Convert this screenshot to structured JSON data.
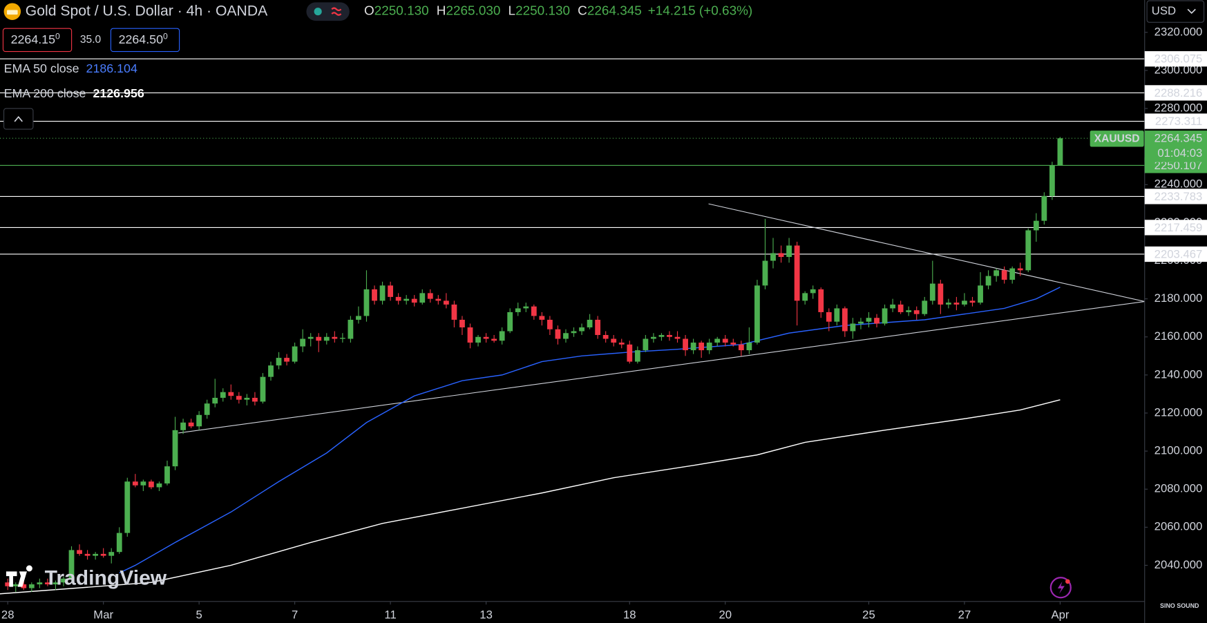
{
  "header": {
    "symbol": "Gold Spot / U.S. Dollar · 4h · OANDA",
    "ohlc": [
      {
        "label": "O",
        "value": "2250.130"
      },
      {
        "label": "H",
        "value": "2265.030"
      },
      {
        "label": "L",
        "value": "2250.130"
      },
      {
        "label": "C",
        "value": "2264.345"
      }
    ],
    "change": "+14.215 (+0.63%)",
    "bid": {
      "price": "2264.15",
      "pip": "0"
    },
    "spread": "35.0",
    "ask": {
      "price": "2264.50",
      "pip": "0"
    },
    "currency": "USD"
  },
  "branding": "TradingView",
  "watermark": "SINO SOUND",
  "chart_data": {
    "type": "candlestick",
    "up_color": "#4caf50",
    "down_color": "#f23645",
    "xlim": [
      -0.97,
      142.6
    ],
    "ylim": [
      2021,
      2337
    ],
    "xticks": [
      {
        "value": 0,
        "label": "28"
      },
      {
        "value": 12,
        "label": "Mar"
      },
      {
        "value": 24,
        "label": "5"
      },
      {
        "value": 36,
        "label": "7"
      },
      {
        "value": 48,
        "label": "11"
      },
      {
        "value": 60,
        "label": "13"
      },
      {
        "value": 78,
        "label": "18"
      },
      {
        "value": 90,
        "label": "20"
      },
      {
        "value": 108,
        "label": "25"
      },
      {
        "value": 120,
        "label": "27"
      },
      {
        "value": 132,
        "label": "Apr"
      }
    ],
    "yticks": [
      {
        "value": 2040,
        "label": "2040.000"
      },
      {
        "value": 2060,
        "label": "2060.000"
      },
      {
        "value": 2080,
        "label": "2080.000"
      },
      {
        "value": 2100,
        "label": "2100.000"
      },
      {
        "value": 2120,
        "label": "2120.000"
      },
      {
        "value": 2140,
        "label": "2140.000"
      },
      {
        "value": 2160,
        "label": "2160.000"
      },
      {
        "value": 2180,
        "label": "2180.000"
      },
      {
        "value": 2200,
        "label": "2200.000"
      },
      {
        "value": 2220,
        "label": "2220.000"
      },
      {
        "value": 2240,
        "label": "2240.000"
      },
      {
        "value": 2260,
        "label": "2260.000"
      },
      {
        "value": 2280,
        "label": "2280.000"
      },
      {
        "value": 2300,
        "label": "2300.000"
      },
      {
        "value": 2320,
        "label": "2320.000"
      }
    ],
    "candles": [
      [
        2031,
        2033,
        2027,
        2029
      ],
      [
        2029,
        2031,
        2026,
        2030
      ],
      [
        2030,
        2032,
        2027,
        2028
      ],
      [
        2028,
        2031,
        2026,
        2030
      ],
      [
        2030,
        2033,
        2028,
        2031
      ],
      [
        2031,
        2033,
        2029,
        2030
      ],
      [
        2030,
        2032,
        2027,
        2031
      ],
      [
        2031,
        2034,
        2029,
        2033
      ],
      [
        2033,
        2050,
        2032,
        2048
      ],
      [
        2048,
        2051,
        2045,
        2046
      ],
      [
        2046,
        2048,
        2043,
        2045
      ],
      [
        2045,
        2047,
        2043,
        2046
      ],
      [
        2046,
        2049,
        2044,
        2045
      ],
      [
        2045,
        2049,
        2041,
        2047
      ],
      [
        2047,
        2060,
        2046,
        2057
      ],
      [
        2057,
        2086,
        2055,
        2084
      ],
      [
        2084,
        2088,
        2081,
        2082
      ],
      [
        2082,
        2085,
        2079,
        2084
      ],
      [
        2084,
        2085,
        2080,
        2081
      ],
      [
        2081,
        2084,
        2079,
        2083
      ],
      [
        2083,
        2095,
        2082,
        2092
      ],
      [
        2092,
        2118,
        2090,
        2111
      ],
      [
        2111,
        2117,
        2109,
        2115
      ],
      [
        2115,
        2117,
        2112,
        2113
      ],
      [
        2113,
        2121,
        2111,
        2119
      ],
      [
        2119,
        2127,
        2117,
        2125
      ],
      [
        2125,
        2138,
        2123,
        2128
      ],
      [
        2128,
        2133,
        2126,
        2131
      ],
      [
        2131,
        2135,
        2127,
        2129
      ],
      [
        2129,
        2131,
        2125,
        2127
      ],
      [
        2127,
        2130,
        2124,
        2128
      ],
      [
        2128,
        2131,
        2124,
        2126
      ],
      [
        2126,
        2141,
        2125,
        2139
      ],
      [
        2139,
        2147,
        2137,
        2145
      ],
      [
        2145,
        2152,
        2143,
        2149
      ],
      [
        2149,
        2151,
        2145,
        2147
      ],
      [
        2147,
        2157,
        2146,
        2155
      ],
      [
        2155,
        2164,
        2152,
        2159
      ],
      [
        2159,
        2162,
        2155,
        2160
      ],
      [
        2160,
        2162,
        2152,
        2158
      ],
      [
        2158,
        2162,
        2156,
        2160
      ],
      [
        2160,
        2163,
        2157,
        2159
      ],
      [
        2159,
        2162,
        2157,
        2159.5
      ],
      [
        2159,
        2171,
        2157,
        2169
      ],
      [
        2169,
        2176,
        2167,
        2171
      ],
      [
        2171,
        2195,
        2168,
        2185
      ],
      [
        2185,
        2187,
        2177,
        2179
      ],
      [
        2179,
        2189,
        2177,
        2187
      ],
      [
        2187,
        2189,
        2179,
        2181
      ],
      [
        2181,
        2183,
        2177,
        2179
      ],
      [
        2179,
        2182,
        2177,
        2180
      ],
      [
        2180,
        2182,
        2176,
        2178
      ],
      [
        2178,
        2185,
        2177,
        2183
      ],
      [
        2183,
        2185,
        2178,
        2180
      ],
      [
        2180,
        2182,
        2177,
        2179
      ],
      [
        2179,
        2183,
        2175,
        2177
      ],
      [
        2177,
        2179,
        2165,
        2169
      ],
      [
        2169,
        2171,
        2161,
        2165
      ],
      [
        2165,
        2167,
        2154,
        2157
      ],
      [
        2157,
        2161,
        2155,
        2160
      ],
      [
        2160,
        2162,
        2157,
        2159
      ],
      [
        2159,
        2161,
        2157,
        2158
      ],
      [
        2158,
        2165,
        2156,
        2163
      ],
      [
        2163,
        2175,
        2162,
        2173
      ],
      [
        2173,
        2178,
        2171,
        2175
      ],
      [
        2175,
        2178,
        2173,
        2176
      ],
      [
        2176,
        2177,
        2169,
        2171
      ],
      [
        2171,
        2173,
        2166,
        2169
      ],
      [
        2169,
        2171,
        2161,
        2164
      ],
      [
        2164,
        2166,
        2156,
        2159
      ],
      [
        2159,
        2164,
        2157,
        2162
      ],
      [
        2162,
        2165,
        2160,
        2163
      ],
      [
        2163,
        2167,
        2161,
        2165
      ],
      [
        2165,
        2172,
        2164,
        2169
      ],
      [
        2169,
        2171,
        2159,
        2161
      ],
      [
        2161,
        2163,
        2157,
        2159
      ],
      [
        2159,
        2161,
        2155,
        2157
      ],
      [
        2157,
        2159,
        2154,
        2156
      ],
      [
        2156,
        2158,
        2146,
        2147
      ],
      [
        2147,
        2155,
        2146,
        2153
      ],
      [
        2153,
        2161,
        2152,
        2159
      ],
      [
        2159,
        2162,
        2157,
        2160
      ],
      [
        2160,
        2162,
        2158,
        2161
      ],
      [
        2161,
        2163,
        2158,
        2160
      ],
      [
        2160,
        2163,
        2157,
        2159
      ],
      [
        2159,
        2161,
        2150,
        2153
      ],
      [
        2153,
        2159,
        2151,
        2157
      ],
      [
        2157,
        2158,
        2149,
        2153
      ],
      [
        2153,
        2159,
        2151,
        2157
      ],
      [
        2157,
        2160,
        2155,
        2159
      ],
      [
        2159,
        2161,
        2155,
        2157
      ],
      [
        2157,
        2159,
        2155,
        2156
      ],
      [
        2156,
        2158,
        2150,
        2153
      ],
      [
        2153,
        2165,
        2151,
        2157
      ],
      [
        2157,
        2190,
        2156,
        2187
      ],
      [
        2187,
        2222,
        2185,
        2200
      ],
      [
        2200,
        2212,
        2196,
        2204
      ],
      [
        2204,
        2208,
        2199,
        2202
      ],
      [
        2202,
        2212,
        2199,
        2208
      ],
      [
        2208,
        2210,
        2166,
        2179
      ],
      [
        2179,
        2184,
        2177,
        2183
      ],
      [
        2183,
        2187,
        2180,
        2185
      ],
      [
        2185,
        2186,
        2170,
        2173
      ],
      [
        2173,
        2175,
        2163,
        2168
      ],
      [
        2168,
        2177,
        2166,
        2175
      ],
      [
        2175,
        2176,
        2160,
        2163
      ],
      [
        2163,
        2170,
        2159,
        2167
      ],
      [
        2167,
        2170,
        2164,
        2168
      ],
      [
        2168,
        2173,
        2165,
        2170
      ],
      [
        2170,
        2172,
        2165,
        2167
      ],
      [
        2167,
        2177,
        2166,
        2175
      ],
      [
        2175,
        2180,
        2173,
        2177
      ],
      [
        2177,
        2179,
        2172,
        2173
      ],
      [
        2173,
        2176,
        2171,
        2174
      ],
      [
        2174,
        2176,
        2169,
        2172
      ],
      [
        2172,
        2181,
        2171,
        2179
      ],
      [
        2179,
        2200,
        2177,
        2188
      ],
      [
        2188,
        2190,
        2172,
        2177
      ],
      [
        2177,
        2180,
        2175,
        2178
      ],
      [
        2178,
        2181,
        2174,
        2177
      ],
      [
        2177,
        2183,
        2176,
        2179
      ],
      [
        2179,
        2181,
        2176,
        2178
      ],
      [
        2178,
        2194,
        2177,
        2187
      ],
      [
        2187,
        2195,
        2185,
        2192
      ],
      [
        2192,
        2196,
        2189,
        2195
      ],
      [
        2195,
        2197,
        2188,
        2190
      ],
      [
        2190,
        2197,
        2188,
        2196
      ],
      [
        2196,
        2199,
        2192,
        2195
      ],
      [
        2195,
        2217,
        2194,
        2216
      ],
      [
        2216,
        2225,
        2210,
        2221
      ],
      [
        2221,
        2236,
        2219,
        2234
      ],
      [
        2234,
        2252,
        2232,
        2250
      ],
      [
        2250.13,
        2265.03,
        2250.13,
        2264.345
      ]
    ],
    "series": [
      {
        "name": "EMA 50 close",
        "color": "#2962ff",
        "x": [
          14,
          16,
          21,
          28,
          34,
          40,
          45,
          51,
          57,
          62,
          67,
          72,
          78,
          84,
          92,
          98,
          105,
          115,
          125,
          129,
          132
        ],
        "values": [
          2036,
          2040,
          2052,
          2068,
          2084,
          2099,
          2115,
          2129,
          2137,
          2140,
          2147,
          2150,
          2152,
          2153.5,
          2156,
          2162,
          2166,
          2169,
          2175,
          2180,
          2186.104
        ]
      },
      {
        "name": "EMA 200 close",
        "color": "#ffffff",
        "x": [
          -1,
          18,
          28,
          38,
          47,
          57,
          67,
          76,
          86,
          94,
          100,
          110,
          120,
          127,
          132
        ],
        "values": [
          2025,
          2031,
          2040,
          2052,
          2062,
          2070,
          2078,
          2086,
          2092.5,
          2098,
          2104.6,
          2111,
          2117,
          2121.6,
          2126.956
        ]
      }
    ],
    "trendlines": [
      {
        "x": [
          21.4,
          142.6
        ],
        "values": [
          2109.5,
          2178.6
        ]
      },
      {
        "x": [
          87.9,
          142.6
        ],
        "values": [
          2229.9,
          2178.6
        ]
      }
    ],
    "levels": [
      {
        "value": 2306.075,
        "color": "#ffffff"
      },
      {
        "value": 2288.216,
        "color": "#ffffff"
      },
      {
        "value": 2273.311,
        "color": "#ffffff"
      },
      {
        "value": 2250.107,
        "color": "#4caf50"
      },
      {
        "value": 2233.783,
        "color": "#ffffff"
      },
      {
        "value": 2217.459,
        "color": "#ffffff"
      },
      {
        "value": 2203.467,
        "color": "#ffffff"
      }
    ],
    "last_price": {
      "symbol": "XAUUSD",
      "value": 2264.345,
      "countdown": "01:04:03",
      "color": "#4caf50"
    }
  }
}
